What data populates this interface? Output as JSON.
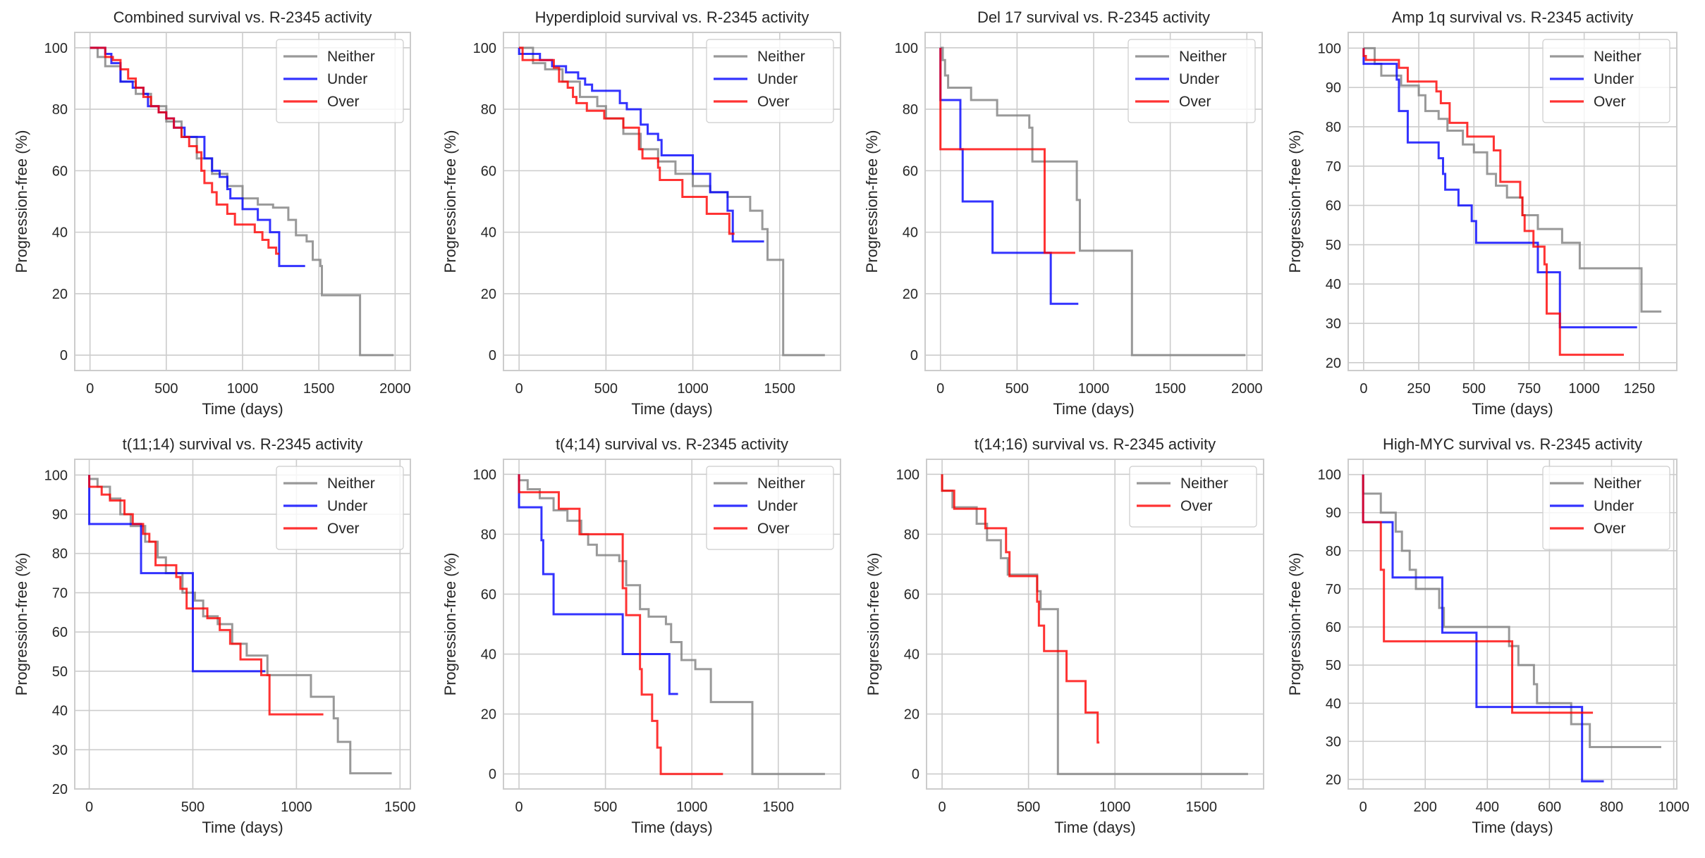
{
  "colors": {
    "Neither": "#808080",
    "Under": "#0000ff",
    "Over": "#ff0000"
  },
  "chart_data": [
    {
      "type": "line",
      "title": "Combined survival vs. R-2345 activity",
      "xlabel": "Time (days)",
      "ylabel": "Progression-free (%)",
      "xlim": [
        -100,
        2100
      ],
      "ylim": [
        -5,
        105
      ],
      "xticks": [
        0,
        500,
        1000,
        1500,
        2000
      ],
      "yticks": [
        0,
        20,
        40,
        60,
        80,
        100
      ],
      "grid": true,
      "legend": "top-right",
      "series": [
        {
          "name": "Neither",
          "x": [
            0,
            50,
            100,
            200,
            300,
            400,
            500,
            600,
            700,
            800,
            900,
            1000,
            1100,
            1200,
            1300,
            1350,
            1420,
            1460,
            1510,
            1520,
            1750,
            1770,
            1990
          ],
          "y": [
            100,
            97,
            94,
            89,
            85,
            81,
            76,
            71,
            64,
            59,
            55,
            51,
            49,
            48,
            44,
            39,
            37,
            31,
            29,
            19.5,
            19.5,
            0,
            0
          ]
        },
        {
          "name": "Under",
          "x": [
            0,
            100,
            140,
            200,
            280,
            350,
            380,
            450,
            500,
            550,
            620,
            710,
            750,
            800,
            850,
            900,
            920,
            1000,
            1100,
            1180,
            1240,
            1410
          ],
          "y": [
            100,
            98,
            95,
            89,
            87,
            85,
            81,
            79,
            77,
            74,
            71,
            71,
            64,
            60,
            58,
            54,
            51,
            47.5,
            44,
            40,
            29,
            29
          ]
        },
        {
          "name": "Over",
          "x": [
            0,
            100,
            150,
            200,
            250,
            300,
            350,
            400,
            450,
            500,
            550,
            600,
            650,
            700,
            730,
            750,
            800,
            830,
            900,
            950,
            1080,
            1130,
            1170,
            1220,
            1240
          ],
          "y": [
            100,
            97,
            96,
            93,
            90,
            87,
            84,
            81,
            79,
            77,
            74,
            71,
            68,
            66,
            60,
            56,
            53,
            49,
            46,
            42.5,
            40,
            37.5,
            35,
            33,
            33
          ]
        }
      ]
    },
    {
      "type": "line",
      "title": "Hyperdiploid survival vs. R-2345 activity",
      "xlabel": "Time (days)",
      "ylabel": "Progression-free (%)",
      "xlim": [
        -90,
        1850
      ],
      "ylim": [
        -5,
        105
      ],
      "xticks": [
        0,
        500,
        1000,
        1500
      ],
      "yticks": [
        0,
        20,
        40,
        60,
        80,
        100
      ],
      "grid": true,
      "legend": "top-right",
      "series": [
        {
          "name": "Neither",
          "x": [
            0,
            80,
            150,
            250,
            350,
            450,
            500,
            600,
            700,
            800,
            900,
            1000,
            1100,
            1200,
            1300,
            1330,
            1400,
            1430,
            1500,
            1520,
            1760
          ],
          "y": [
            100,
            95,
            93,
            89,
            84,
            81,
            77,
            72,
            67,
            63,
            59,
            55,
            53,
            51.5,
            51.5,
            47,
            41,
            31,
            31,
            0,
            0
          ]
        },
        {
          "name": "Under",
          "x": [
            0,
            120,
            190,
            270,
            340,
            380,
            420,
            530,
            580,
            620,
            700,
            740,
            800,
            820,
            1000,
            1100,
            1200,
            1230,
            1410
          ],
          "y": [
            98,
            96,
            94,
            92,
            90,
            88,
            86,
            86,
            82,
            80,
            75,
            72,
            70,
            65,
            59,
            53,
            47,
            37,
            37
          ]
        },
        {
          "name": "Over",
          "x": [
            0,
            20,
            200,
            230,
            280,
            310,
            330,
            390,
            490,
            600,
            690,
            710,
            800,
            810,
            940,
            1080,
            1210,
            1240
          ],
          "y": [
            100,
            96,
            93.5,
            89,
            87,
            84,
            82,
            79.5,
            77,
            74,
            67,
            64,
            61,
            57,
            51.5,
            46,
            39.5,
            39.5
          ]
        }
      ]
    },
    {
      "type": "line",
      "title": "Del 17 survival vs. R-2345 activity",
      "xlabel": "Time (days)",
      "ylabel": "Progression-free (%)",
      "xlim": [
        -100,
        2100
      ],
      "ylim": [
        -5,
        105
      ],
      "xticks": [
        0,
        500,
        1000,
        1500,
        2000
      ],
      "yticks": [
        0,
        20,
        40,
        60,
        80,
        100
      ],
      "grid": true,
      "legend": "top-right",
      "series": [
        {
          "name": "Neither",
          "x": [
            0,
            15,
            30,
            50,
            200,
            370,
            580,
            600,
            890,
            910,
            1250,
            1990
          ],
          "y": [
            100,
            96,
            91,
            87,
            83,
            78,
            74,
            63,
            50.5,
            34,
            0,
            0
          ]
        },
        {
          "name": "Under",
          "x": [
            0,
            130,
            145,
            340,
            720,
            900
          ],
          "y": [
            83,
            67,
            50,
            33.3,
            16.7,
            16.7
          ]
        },
        {
          "name": "Over",
          "x": [
            0,
            680,
            880
          ],
          "y": [
            67,
            33.3,
            33.3
          ]
        }
      ]
    },
    {
      "type": "line",
      "title": "Amp 1q survival vs. R-2345 activity",
      "xlabel": "Time (days)",
      "ylabel": "Progression-free (%)",
      "xlim": [
        -70,
        1420
      ],
      "ylim": [
        18,
        104
      ],
      "xticks": [
        0,
        250,
        500,
        750,
        1000,
        1250
      ],
      "yticks": [
        20,
        30,
        40,
        50,
        60,
        70,
        80,
        90,
        100
      ],
      "grid": true,
      "legend": "top-right",
      "series": [
        {
          "name": "Neither",
          "x": [
            0,
            50,
            80,
            170,
            250,
            280,
            340,
            380,
            450,
            500,
            560,
            600,
            650,
            720,
            790,
            900,
            980,
            1260,
            1350
          ],
          "y": [
            100,
            96,
            93,
            90.5,
            88,
            84,
            82,
            79,
            75.5,
            73.5,
            68,
            65,
            62,
            57.5,
            54,
            50.5,
            44,
            33,
            33
          ]
        },
        {
          "name": "Under",
          "x": [
            0,
            150,
            160,
            200,
            340,
            360,
            370,
            430,
            490,
            510,
            790,
            890,
            1240
          ],
          "y": [
            96,
            92,
            84,
            76,
            72,
            68,
            64,
            60,
            56,
            50.5,
            43,
            29,
            29
          ]
        },
        {
          "name": "Over",
          "x": [
            0,
            10,
            160,
            200,
            330,
            350,
            390,
            470,
            590,
            620,
            710,
            720,
            730,
            770,
            820,
            830,
            890,
            1180
          ],
          "y": [
            98,
            97,
            95,
            91.5,
            89,
            86,
            81,
            77.5,
            74,
            66,
            62,
            57.5,
            53.5,
            49.5,
            45,
            32.5,
            22,
            22
          ]
        }
      ]
    },
    {
      "type": "line",
      "title": "t(11;14) survival vs. R-2345 activity",
      "xlabel": "Time (days)",
      "ylabel": "Progression-free (%)",
      "xlim": [
        -70,
        1550
      ],
      "ylim": [
        20,
        104
      ],
      "xticks": [
        0,
        500,
        1000,
        1500
      ],
      "yticks": [
        20,
        30,
        40,
        50,
        60,
        70,
        80,
        90,
        100
      ],
      "grid": true,
      "legend": "top-right",
      "series": [
        {
          "name": "Neither",
          "x": [
            0,
            40,
            100,
            150,
            200,
            270,
            330,
            370,
            450,
            510,
            550,
            620,
            690,
            760,
            860,
            1070,
            1180,
            1200,
            1260,
            1460
          ],
          "y": [
            99,
            97,
            94,
            90,
            87,
            83,
            79,
            75,
            70,
            68,
            64,
            62,
            57,
            54,
            49,
            43.5,
            38,
            32,
            24,
            24
          ]
        },
        {
          "name": "Under",
          "x": [
            0,
            250,
            500,
            850
          ],
          "y": [
            87.5,
            75,
            50,
            50
          ]
        },
        {
          "name": "Over",
          "x": [
            0,
            60,
            100,
            170,
            210,
            260,
            290,
            320,
            420,
            440,
            470,
            570,
            630,
            680,
            730,
            830,
            870,
            1130
          ],
          "y": [
            97,
            95,
            93.5,
            90,
            87.5,
            85,
            83,
            77,
            74,
            71,
            66,
            63.5,
            60.5,
            57,
            53,
            49,
            39,
            39
          ]
        }
      ]
    },
    {
      "type": "line",
      "title": "t(4;14) survival vs. R-2345 activity",
      "xlabel": "Time (days)",
      "ylabel": "Progression-free (%)",
      "xlim": [
        -90,
        1860
      ],
      "ylim": [
        -5,
        105
      ],
      "xticks": [
        0,
        500,
        1000,
        1500
      ],
      "yticks": [
        0,
        20,
        40,
        60,
        80,
        100
      ],
      "grid": true,
      "legend": "top-right",
      "series": [
        {
          "name": "Neither",
          "x": [
            0,
            50,
            120,
            200,
            280,
            360,
            400,
            450,
            580,
            620,
            700,
            750,
            850,
            880,
            940,
            1020,
            1110,
            1350,
            1770
          ],
          "y": [
            98,
            95,
            92,
            88,
            84.5,
            80,
            76.5,
            73,
            71,
            63,
            55,
            52.5,
            50,
            44,
            38,
            35,
            24,
            0,
            0
          ]
        },
        {
          "name": "Under",
          "x": [
            0,
            130,
            140,
            200,
            600,
            870,
            920
          ],
          "y": [
            89,
            78,
            66.7,
            53.3,
            40,
            26.7,
            26.7
          ]
        },
        {
          "name": "Over",
          "x": [
            0,
            230,
            350,
            600,
            620,
            700,
            710,
            770,
            800,
            820,
            1180
          ],
          "y": [
            94,
            88.5,
            80,
            62,
            53,
            35,
            26.5,
            17.7,
            8.8,
            0,
            0
          ]
        }
      ]
    },
    {
      "type": "line",
      "title": "t(14;16) survival vs. R-2345 activity",
      "xlabel": "Time (days)",
      "ylabel": "Progression-free (%)",
      "xlim": [
        -90,
        1860
      ],
      "ylim": [
        -5,
        105
      ],
      "xticks": [
        0,
        500,
        1000,
        1500
      ],
      "yticks": [
        0,
        20,
        40,
        60,
        80,
        100
      ],
      "grid": true,
      "legend": "top-right",
      "series": [
        {
          "name": "Neither",
          "x": [
            0,
            60,
            200,
            260,
            340,
            380,
            550,
            570,
            670,
            1770
          ],
          "y": [
            94.5,
            89,
            83.5,
            78,
            72,
            66.5,
            61,
            55,
            0,
            0
          ]
        },
        {
          "name": "Over",
          "x": [
            0,
            70,
            250,
            370,
            390,
            550,
            560,
            590,
            720,
            830,
            900,
            910
          ],
          "y": [
            94.5,
            88.5,
            82,
            74,
            66,
            57.5,
            49.5,
            41,
            31,
            20.5,
            10.5,
            10.5
          ]
        }
      ]
    },
    {
      "type": "line",
      "title": "High-MYC survival vs. R-2345 activity",
      "xlabel": "Time (days)",
      "ylabel": "Progression-free (%)",
      "xlim": [
        -48,
        1010
      ],
      "ylim": [
        17.5,
        104
      ],
      "xticks": [
        0,
        200,
        400,
        600,
        800,
        1000
      ],
      "yticks": [
        20,
        30,
        40,
        50,
        60,
        70,
        80,
        90,
        100
      ],
      "grid": true,
      "legend": "top-right",
      "series": [
        {
          "name": "Neither",
          "x": [
            0,
            57,
            105,
            125,
            150,
            170,
            245,
            260,
            470,
            500,
            550,
            560,
            670,
            730,
            960
          ],
          "y": [
            95,
            90,
            85,
            80,
            75,
            70,
            65,
            60,
            55,
            50,
            45,
            40,
            34.5,
            28.5,
            28.5
          ]
        },
        {
          "name": "Under",
          "x": [
            0,
            95,
            255,
            365,
            705,
            775
          ],
          "y": [
            87.5,
            73,
            58.5,
            39,
            19.5,
            19.5
          ]
        },
        {
          "name": "Over",
          "x": [
            0,
            57,
            67,
            480,
            740
          ],
          "y": [
            87.5,
            75,
            56.25,
            37.5,
            37.5
          ]
        }
      ]
    }
  ]
}
